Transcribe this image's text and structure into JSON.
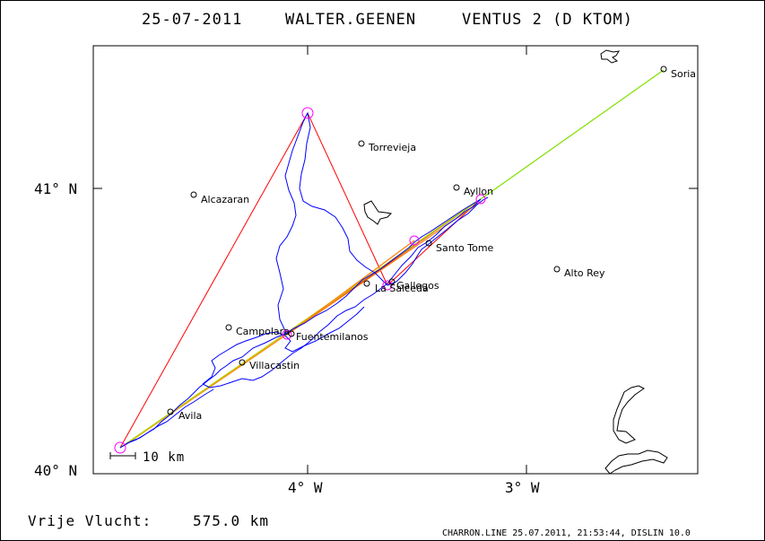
{
  "header": {
    "date": "25-07-2011",
    "pilot": "WALTER.GEENEN",
    "glider": "VENTUS 2 (D KTOM)"
  },
  "axes": {
    "x_ticks": [
      "4° W",
      "3° W"
    ],
    "y_ticks": [
      "41° N",
      "40° N"
    ]
  },
  "scale_bar": {
    "label": "10 km"
  },
  "places": [
    {
      "name": "Soria"
    },
    {
      "name": "Torrevieja"
    },
    {
      "name": "Ayllon"
    },
    {
      "name": "Alcazaran"
    },
    {
      "name": "Santo Tome"
    },
    {
      "name": "Alto Rey"
    },
    {
      "name": "Gallegos"
    },
    {
      "name": "La Salceda"
    },
    {
      "name": "Campolara"
    },
    {
      "name": "Fuentemilanos"
    },
    {
      "name": "Villacastin"
    },
    {
      "name": "Avila"
    }
  ],
  "distance": {
    "label": "Vrije Vlucht:",
    "value": "575.0 km"
  },
  "footer": {
    "credit": "CHARRON.LINE 25.07.2011, 21:53:44, DISLIN 10.0"
  },
  "colors": {
    "frame": "#000000",
    "track": "#0000ff",
    "task": "#ff0000",
    "leg_green": "#80e000",
    "leg_orange": "#ff8000",
    "leg_yellow": "#c8c800",
    "turnpoint": "#ff00ff",
    "background": "#ffffff"
  }
}
